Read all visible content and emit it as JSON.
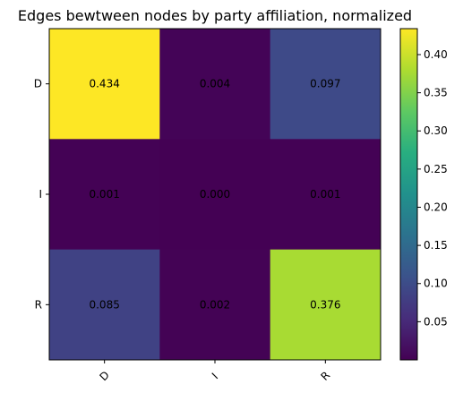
{
  "chart_data": {
    "type": "heatmap",
    "title": "Edges bewtween nodes by party affiliation, normalized",
    "x_categories": [
      "D",
      "I",
      "R"
    ],
    "y_categories": [
      "D",
      "I",
      "R"
    ],
    "values": [
      [
        0.434,
        0.004,
        0.097
      ],
      [
        0.001,
        0.0,
        0.001
      ],
      [
        0.085,
        0.002,
        0.376
      ]
    ],
    "value_labels": [
      [
        "0.434",
        "0.004",
        "0.097"
      ],
      [
        "0.001",
        "0.000",
        "0.001"
      ],
      [
        "0.085",
        "0.002",
        "0.376"
      ]
    ],
    "colormap": "viridis",
    "colorbar": {
      "min": 0.0,
      "max": 0.434,
      "ticks": [
        0.05,
        0.1,
        0.15,
        0.2,
        0.25,
        0.3,
        0.35,
        0.4
      ],
      "tick_labels": [
        "0.05",
        "0.10",
        "0.15",
        "0.20",
        "0.25",
        "0.30",
        "0.35",
        "0.40"
      ]
    },
    "x_tick_rotation": 45
  }
}
